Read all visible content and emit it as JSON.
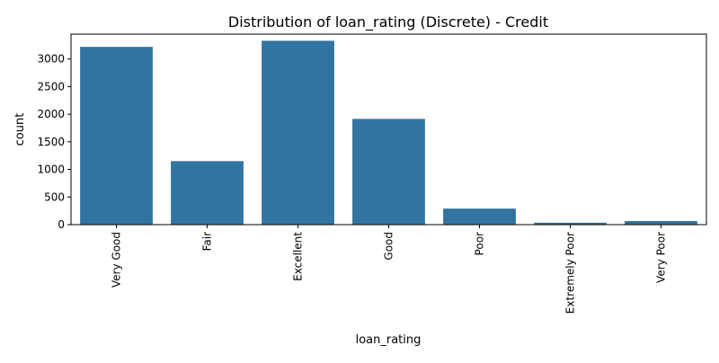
{
  "chart_data": {
    "type": "bar",
    "title": "Distribution of loan_rating (Discrete) - Credit",
    "xlabel": "loan_rating",
    "ylabel": "count",
    "categories": [
      "Very Good",
      "Fair",
      "Excellent",
      "Good",
      "Poor",
      "Extremely Poor",
      "Very Poor"
    ],
    "values": [
      3220,
      1150,
      3330,
      1915,
      290,
      35,
      65
    ],
    "ylim": [
      0,
      3450
    ],
    "yticks": [
      0,
      500,
      1000,
      1500,
      2000,
      2500,
      3000
    ],
    "grid": false,
    "bar_color": "#3274a1"
  }
}
